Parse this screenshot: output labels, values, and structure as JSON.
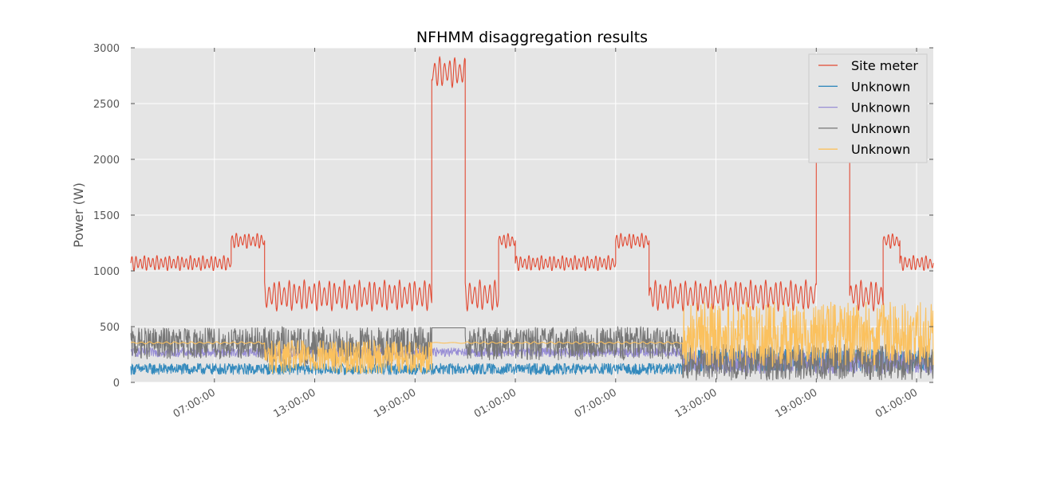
{
  "chart_data": {
    "type": "line",
    "title": "NFHMM disaggregation results",
    "xlabel": "",
    "ylabel": "Power (W)",
    "x_unit": "hours",
    "xlim": [
      2.0,
      50.0
    ],
    "ylim": [
      0,
      3000
    ],
    "yticks": [
      0,
      500,
      1000,
      1500,
      2000,
      2500,
      3000
    ],
    "xticks": [
      {
        "x": 7,
        "label": "07:00:00"
      },
      {
        "x": 13,
        "label": "13:00:00"
      },
      {
        "x": 19,
        "label": "19:00:00"
      },
      {
        "x": 25,
        "label": "01:00:00"
      },
      {
        "x": 31,
        "label": "07:00:00"
      },
      {
        "x": 37,
        "label": "13:00:00"
      },
      {
        "x": 43,
        "label": "19:00:00"
      },
      {
        "x": 49,
        "label": "01:00:00"
      }
    ],
    "grid": true,
    "legend_position": "top-right",
    "background": "#e5e5e5",
    "series": [
      {
        "name": "Site meter",
        "color": "#e24a33",
        "segments": [
          {
            "x": [
              2.0,
              8.0
            ],
            "center": 1070,
            "amp": 70,
            "period": 0.25
          },
          {
            "x": [
              8.0,
              10.0
            ],
            "center": 1270,
            "amp": 70,
            "period": 0.25
          },
          {
            "x": [
              10.0,
              20.0
            ],
            "center": 780,
            "amp": 140,
            "period": 0.3
          },
          {
            "x": [
              20.0,
              22.0
            ],
            "center": 2780,
            "amp": 140,
            "period": 0.3
          },
          {
            "x": [
              22.0,
              24.0
            ],
            "center": 780,
            "amp": 140,
            "period": 0.3
          },
          {
            "x": [
              24.0,
              25.0
            ],
            "center": 1270,
            "amp": 70,
            "period": 0.25
          },
          {
            "x": [
              25.0,
              31.0
            ],
            "center": 1070,
            "amp": 70,
            "period": 0.25
          },
          {
            "x": [
              31.0,
              33.0
            ],
            "center": 1270,
            "amp": 70,
            "period": 0.25
          },
          {
            "x": [
              33.0,
              43.0
            ],
            "center": 780,
            "amp": 140,
            "period": 0.3
          },
          {
            "x": [
              43.0,
              45.0
            ],
            "center": 2780,
            "amp": 140,
            "period": 0.3
          },
          {
            "x": [
              45.0,
              47.0
            ],
            "center": 780,
            "amp": 140,
            "period": 0.3
          },
          {
            "x": [
              47.0,
              48.0
            ],
            "center": 1270,
            "amp": 70,
            "period": 0.25
          },
          {
            "x": [
              48.0,
              50.0
            ],
            "center": 1070,
            "amp": 70,
            "period": 0.25
          }
        ]
      },
      {
        "name": "Unknown",
        "color": "#348abd",
        "segments": [
          {
            "x": [
              2.0,
              35.0
            ],
            "center": 120,
            "amp": 50,
            "period": 0.08,
            "noise": true
          },
          {
            "x": [
              35.0,
              50.0
            ],
            "center": 200,
            "amp": 100,
            "period": 0.08,
            "noise": true
          }
        ]
      },
      {
        "name": "Unknown",
        "color": "#988ed5",
        "segments": [
          {
            "x": [
              2.0,
              35.0
            ],
            "center": 270,
            "amp": 40,
            "period": 0.12,
            "noise": true
          },
          {
            "x": [
              35.0,
              50.0
            ],
            "center": 180,
            "amp": 100,
            "period": 0.1,
            "noise": true
          }
        ]
      },
      {
        "name": "Unknown",
        "color": "#777777",
        "segments": [
          {
            "x": [
              2.0,
              10.0
            ],
            "center": 350,
            "amp": 140,
            "period": 0.22,
            "noise": true
          },
          {
            "x": [
              10.0,
              20.0
            ],
            "center": 320,
            "amp": 180,
            "period": 0.15,
            "noise": true
          },
          {
            "x": [
              20.0,
              22.0
            ],
            "center": 490,
            "amp": 0,
            "period": 1.0
          },
          {
            "x": [
              22.0,
              35.0
            ],
            "center": 350,
            "amp": 150,
            "period": 0.18,
            "noise": true
          },
          {
            "x": [
              35.0,
              50.0
            ],
            "center": 180,
            "amp": 160,
            "period": 0.08,
            "noise": true
          }
        ]
      },
      {
        "name": "Unknown",
        "color": "#fbc15e",
        "segments": [
          {
            "x": [
              2.0,
              10.0
            ],
            "center": 355,
            "amp": 10,
            "period": 0.5
          },
          {
            "x": [
              10.0,
              20.0
            ],
            "center": 230,
            "amp": 150,
            "period": 0.07,
            "noise": true
          },
          {
            "x": [
              20.0,
              22.0
            ],
            "center": 355,
            "amp": 5,
            "period": 1.0
          },
          {
            "x": [
              22.0,
              35.0
            ],
            "center": 355,
            "amp": 10,
            "period": 0.5
          },
          {
            "x": [
              35.0,
              50.0
            ],
            "center": 430,
            "amp": 290,
            "period": 0.07,
            "noise": true
          }
        ]
      }
    ]
  }
}
